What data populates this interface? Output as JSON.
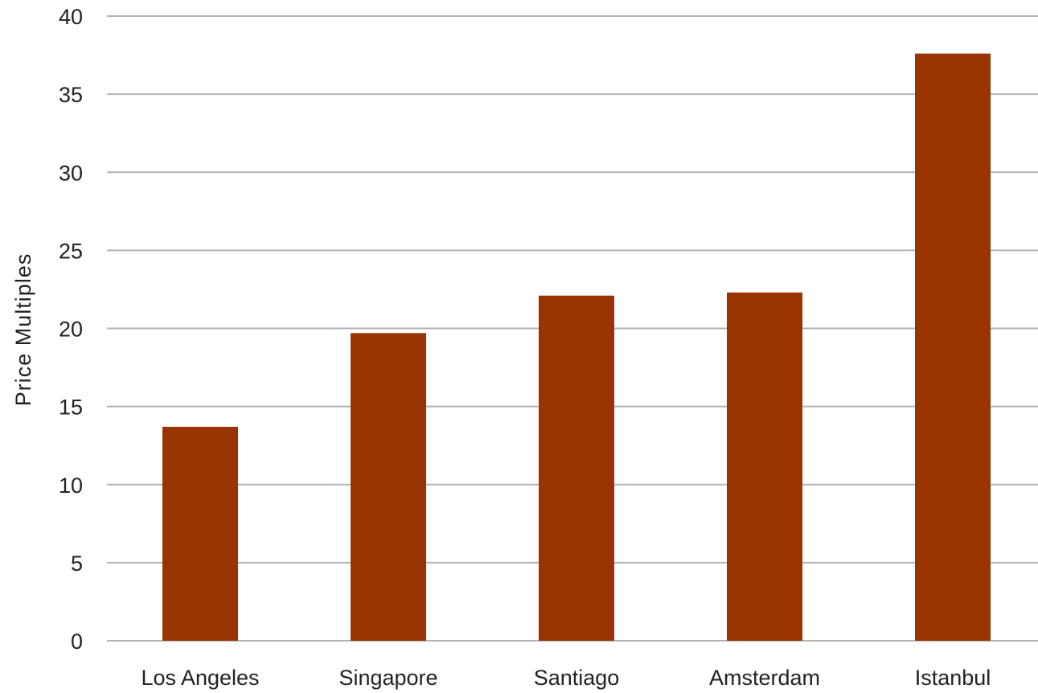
{
  "chart_data": {
    "type": "bar",
    "title": "",
    "xlabel": "",
    "ylabel": "Price  Multiples",
    "categories": [
      "Los Angeles",
      "Singapore",
      "Santiago",
      "Amsterdam",
      "Istanbul"
    ],
    "values": [
      13.7,
      19.7,
      22.1,
      22.3,
      37.6
    ],
    "ylim": [
      0,
      40
    ],
    "yticks": [
      "0",
      "5",
      "10",
      "15",
      "20",
      "25",
      "30",
      "35",
      "40"
    ],
    "grid": true,
    "legend": "none",
    "bar_color": "#993300",
    "grid_color": "#b3b3b3"
  }
}
